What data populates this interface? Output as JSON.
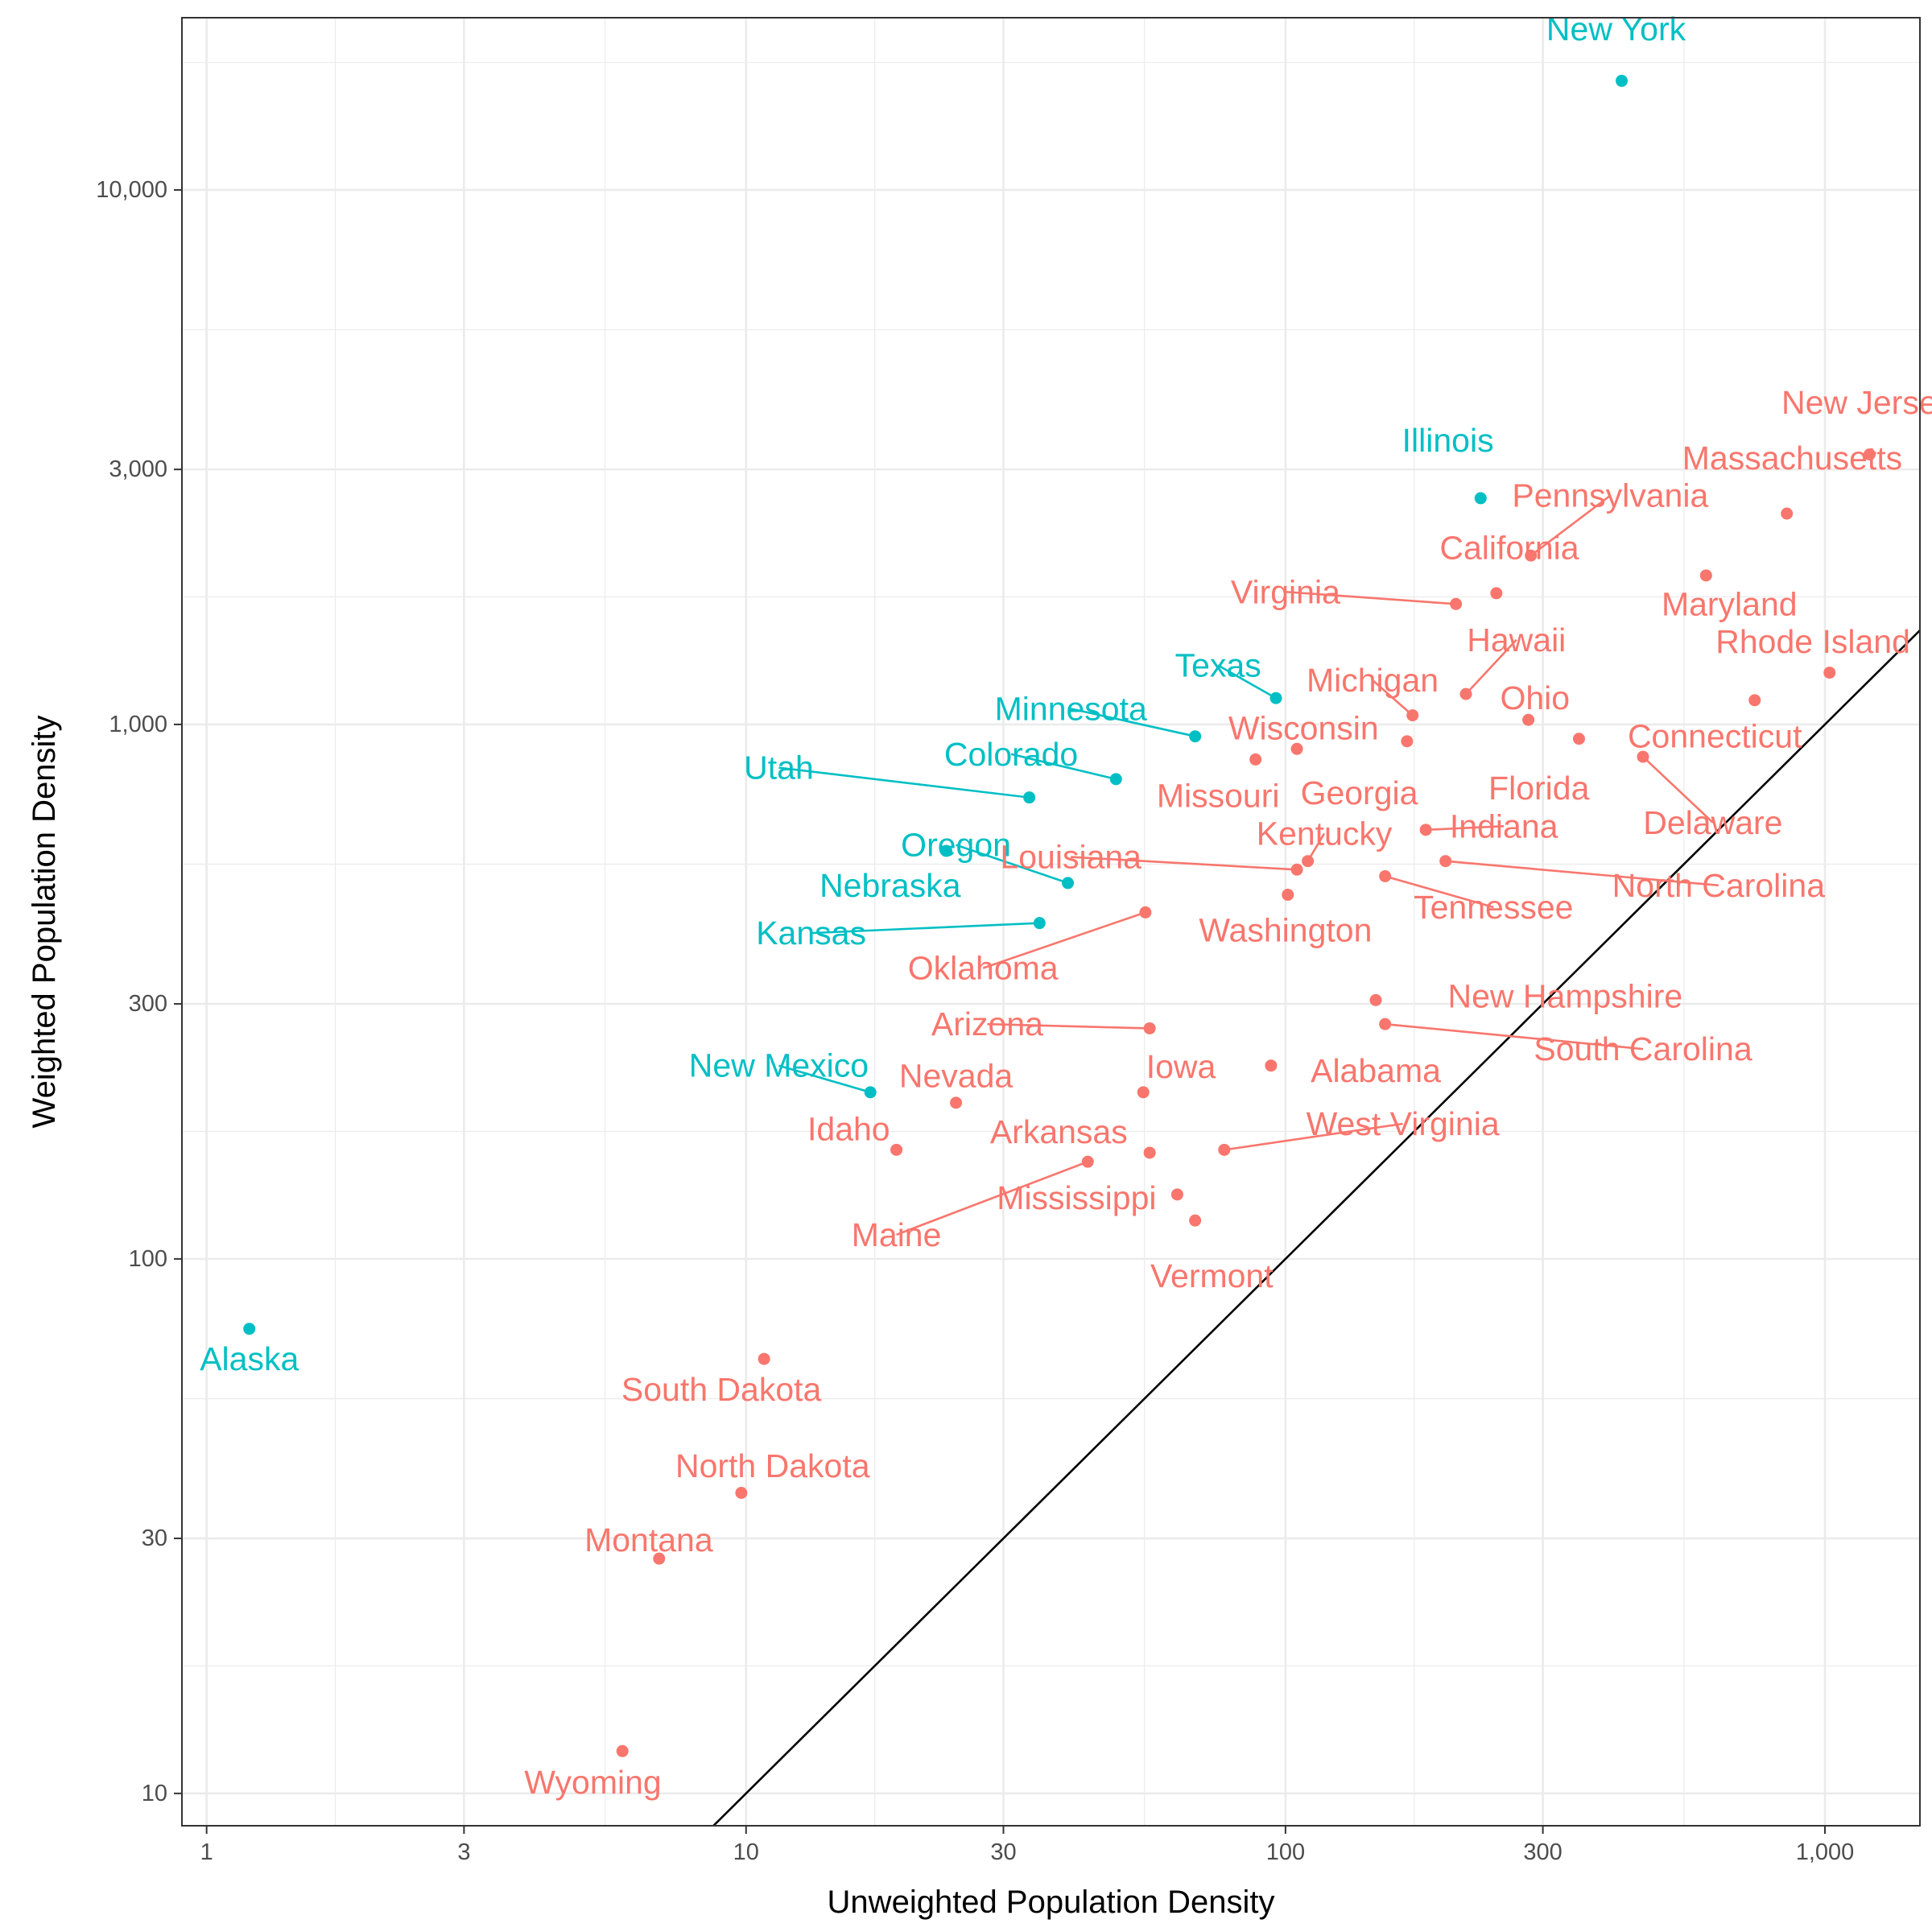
{
  "chart_data": {
    "type": "scatter",
    "title": "",
    "xlabel": "Unweighted Population Density",
    "ylabel": "Weighted Population Density",
    "x_scale": "log10",
    "y_scale": "log10",
    "xlim": [
      0.9,
      1500
    ],
    "ylim": [
      8.7,
      21000
    ],
    "x_ticks": [
      {
        "v": 1,
        "label": "1"
      },
      {
        "v": 3,
        "label": "3"
      },
      {
        "v": 10,
        "label": "10"
      },
      {
        "v": 30,
        "label": "30"
      },
      {
        "v": 100,
        "label": "100"
      },
      {
        "v": 300,
        "label": "300"
      },
      {
        "v": 1000,
        "label": "1,000"
      }
    ],
    "y_ticks": [
      {
        "v": 10,
        "label": "10"
      },
      {
        "v": 30,
        "label": "30"
      },
      {
        "v": 100,
        "label": "100"
      },
      {
        "v": 300,
        "label": "300"
      },
      {
        "v": 1000,
        "label": "1,000"
      },
      {
        "v": 3000,
        "label": "3,000"
      },
      {
        "v": 10000,
        "label": "10,000"
      }
    ],
    "x_minor_grid": [
      1.732,
      5.477,
      17.32,
      54.77,
      173.2,
      547.7
    ],
    "y_minor_grid": [
      17.32,
      54.77,
      173.2,
      547.7,
      1732,
      5477,
      17320
    ],
    "grid": true,
    "reference_line": "y = x",
    "colors": {
      "A": "#F8766D",
      "B": "#00BFC4",
      "line": "#000000",
      "grid": "#ebebeb",
      "panel_border": "#333333"
    },
    "points": [
      {
        "name": "New York",
        "x": 420,
        "y": 16000,
        "g": "B",
        "lx": 410,
        "ly": 20000
      },
      {
        "name": "New Jersey",
        "x": 1210,
        "y": 3200,
        "g": "A",
        "lx": 1200,
        "ly": 4000
      },
      {
        "name": "Massachusetts",
        "x": 850,
        "y": 2480,
        "g": "A",
        "lx": 870,
        "ly": 3150
      },
      {
        "name": "Illinois",
        "x": 230,
        "y": 2650,
        "g": "B",
        "lx": 200,
        "ly": 3400
      },
      {
        "name": "Pennsylvania",
        "x": 285,
        "y": 2070,
        "g": "A",
        "lx": 400,
        "ly": 2680,
        "leader": true
      },
      {
        "name": "California",
        "x": 246,
        "y": 1760,
        "g": "A",
        "lx": 260,
        "ly": 2140
      },
      {
        "name": "Maryland",
        "x": 602,
        "y": 1900,
        "g": "A",
        "lx": 665,
        "ly": 1680
      },
      {
        "name": "Virginia",
        "x": 207,
        "y": 1680,
        "g": "A",
        "lx": 100,
        "ly": 1770,
        "leader": true
      },
      {
        "name": "Hawaii",
        "x": 216,
        "y": 1140,
        "g": "A",
        "lx": 268,
        "ly": 1440,
        "leader": true
      },
      {
        "name": "Rhode Island",
        "x": 1020,
        "y": 1250,
        "g": "A",
        "lx": 950,
        "ly": 1430
      },
      {
        "name": "Texas",
        "x": 96,
        "y": 1120,
        "g": "B",
        "lx": 75,
        "ly": 1290,
        "leader": true
      },
      {
        "name": "Michigan",
        "x": 172,
        "y": 1040,
        "g": "A",
        "lx": 145,
        "ly": 1210,
        "leader": true
      },
      {
        "name": "Ohio",
        "x": 282,
        "y": 1020,
        "g": "A",
        "lx": 290,
        "ly": 1120
      },
      {
        "name": "Connecticut",
        "x": 741,
        "y": 1110,
        "g": "A",
        "lx": 625,
        "ly": 950
      },
      {
        "name": "Minnesota",
        "x": 68,
        "y": 950,
        "g": "B",
        "lx": 40,
        "ly": 1070,
        "leader": true
      },
      {
        "name": "Wisconsin",
        "x": 105,
        "y": 900,
        "g": "A",
        "lx": 108,
        "ly": 985
      },
      {
        "name": "Georgia",
        "x": 168,
        "y": 930,
        "g": "A",
        "lx": 137,
        "ly": 745
      },
      {
        "name": "Florida",
        "x": 350,
        "y": 940,
        "g": "A",
        "lx": 295,
        "ly": 760
      },
      {
        "name": "Missouri",
        "x": 88,
        "y": 860,
        "g": "A",
        "lx": 75,
        "ly": 735
      },
      {
        "name": "Delaware",
        "x": 460,
        "y": 870,
        "g": "A",
        "lx": 620,
        "ly": 655,
        "leader": true
      },
      {
        "name": "Utah",
        "x": 33.5,
        "y": 730,
        "g": "B",
        "lx": 11.5,
        "ly": 830,
        "leader": true
      },
      {
        "name": "Colorado",
        "x": 48.5,
        "y": 790,
        "g": "B",
        "lx": 31,
        "ly": 880,
        "leader": true
      },
      {
        "name": "Oregon",
        "x": 39.5,
        "y": 505,
        "g": "B",
        "lx": 24.5,
        "ly": 595,
        "leader": true
      },
      {
        "name": "Indiana",
        "x": 182,
        "y": 635,
        "g": "A",
        "lx": 254,
        "ly": 645,
        "leader": true
      },
      {
        "name": "Kentucky",
        "x": 110,
        "y": 555,
        "g": "A",
        "lx": 118,
        "ly": 625,
        "leader": true
      },
      {
        "name": "Nebraska",
        "x": 23.5,
        "y": 580,
        "g": "B",
        "lx": 18.5,
        "ly": 500
      },
      {
        "name": "Louisiana",
        "x": 105,
        "y": 535,
        "g": "A",
        "lx": 40,
        "ly": 565,
        "leader": true
      },
      {
        "name": "North Carolina",
        "x": 198,
        "y": 555,
        "g": "A",
        "lx": 635,
        "ly": 500,
        "leader": true
      },
      {
        "name": "Tennessee",
        "x": 153,
        "y": 520,
        "g": "A",
        "lx": 243,
        "ly": 455,
        "leader": true
      },
      {
        "name": "Washington",
        "x": 101,
        "y": 480,
        "g": "A",
        "lx": 100,
        "ly": 412
      },
      {
        "name": "Kansas",
        "x": 35,
        "y": 425,
        "g": "B",
        "lx": 13.2,
        "ly": 407,
        "leader": true
      },
      {
        "name": "Oklahoma",
        "x": 55,
        "y": 445,
        "g": "A",
        "lx": 27.5,
        "ly": 350,
        "leader": true
      },
      {
        "name": "New Hampshire",
        "x": 147,
        "y": 305,
        "g": "A",
        "lx": 330,
        "ly": 310
      },
      {
        "name": "South Carolina",
        "x": 153,
        "y": 275,
        "g": "A",
        "lx": 460,
        "ly": 247,
        "leader": true
      },
      {
        "name": "Arizona",
        "x": 56,
        "y": 270,
        "g": "A",
        "lx": 28,
        "ly": 275,
        "leader": true
      },
      {
        "name": "Alabama",
        "x": 94,
        "y": 230,
        "g": "A",
        "lx": 147,
        "ly": 225
      },
      {
        "name": "Iowa",
        "x": 54.5,
        "y": 205,
        "g": "A",
        "lx": 64,
        "ly": 229
      },
      {
        "name": "New Mexico",
        "x": 17,
        "y": 205,
        "g": "B",
        "lx": 11.5,
        "ly": 230,
        "leader": true
      },
      {
        "name": "Nevada",
        "x": 24.5,
        "y": 196,
        "g": "A",
        "lx": 24.5,
        "ly": 220
      },
      {
        "name": "Idaho",
        "x": 19,
        "y": 160,
        "g": "A",
        "lx": 15.5,
        "ly": 175
      },
      {
        "name": "Arkansas",
        "x": 56,
        "y": 158,
        "g": "A",
        "lx": 38,
        "ly": 173
      },
      {
        "name": "West Virginia",
        "x": 77,
        "y": 160,
        "g": "A",
        "lx": 165,
        "ly": 179,
        "leader": true
      },
      {
        "name": "Maine",
        "x": 43,
        "y": 152,
        "g": "A",
        "lx": 19,
        "ly": 111,
        "leader": true
      },
      {
        "name": "Mississippi",
        "x": 63,
        "y": 132,
        "g": "A",
        "lx": 41,
        "ly": 130
      },
      {
        "name": "Vermont",
        "x": 68,
        "y": 118,
        "g": "A",
        "lx": 73,
        "ly": 93
      },
      {
        "name": "Alaska",
        "x": 1.2,
        "y": 74,
        "g": "B",
        "lx": 1.2,
        "ly": 65
      },
      {
        "name": "South Dakota",
        "x": 10.8,
        "y": 65,
        "g": "A",
        "lx": 9,
        "ly": 57
      },
      {
        "name": "North Dakota",
        "x": 9.8,
        "y": 36.5,
        "g": "A",
        "lx": 11.2,
        "ly": 41
      },
      {
        "name": "Montana",
        "x": 6.9,
        "y": 27.5,
        "g": "A",
        "lx": 6.6,
        "ly": 29.8
      },
      {
        "name": "Wyoming",
        "x": 5.9,
        "y": 12,
        "g": "A",
        "lx": 5.2,
        "ly": 10.5
      }
    ]
  }
}
